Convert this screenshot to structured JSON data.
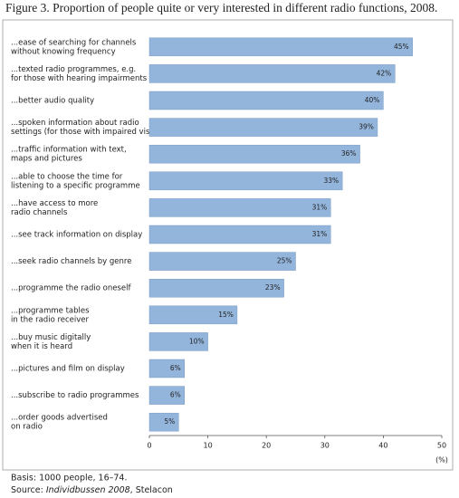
{
  "chart_data": {
    "type": "bar",
    "orientation": "horizontal",
    "title": "Figure 3. Proportion of people quite or very interested in different radio functions, 2008.",
    "categories": [
      [
        "...ease of searching for channels",
        "without knowing frequency"
      ],
      [
        "...texted radio programmes, e.g.",
        "for those with hearing impairments"
      ],
      [
        "...better audio quality"
      ],
      [
        "...spoken information about radio",
        "settings (for those with impaired vision)"
      ],
      [
        "...traffic information with text,",
        "maps and pictures"
      ],
      [
        "...able to choose the time for",
        "listening to a specific programme"
      ],
      [
        "...have access to more",
        "radio channels"
      ],
      [
        "...see track information on display"
      ],
      [
        "...seek radio channels by genre"
      ],
      [
        "...programme the radio oneself"
      ],
      [
        "...programme tables",
        "in the radio receiver"
      ],
      [
        "...buy music digitally",
        "when it is heard"
      ],
      [
        "...pictures and film on display"
      ],
      [
        "...subscribe to radio programmes"
      ],
      [
        "...order goods advertised",
        "on radio"
      ]
    ],
    "values": [
      45,
      42,
      40,
      39,
      36,
      33,
      31,
      31,
      25,
      23,
      15,
      10,
      6,
      6,
      5
    ],
    "value_labels": [
      "45%",
      "42%",
      "40%",
      "39%",
      "36%",
      "33%",
      "31%",
      "31%",
      "25%",
      "23%",
      "15%",
      "10%",
      "6%",
      "6%",
      "5%"
    ],
    "color": "#93b5dc",
    "xlim": [
      0,
      50
    ],
    "xticks": [
      0,
      10,
      20,
      30,
      40,
      50
    ],
    "xlabel": "(%)",
    "basis": "Basis: 1000 people, 16–74.",
    "source": {
      "prefix": "Source: ",
      "italic": "Individbussen 2008",
      "suffix": ", Stelacon"
    }
  }
}
